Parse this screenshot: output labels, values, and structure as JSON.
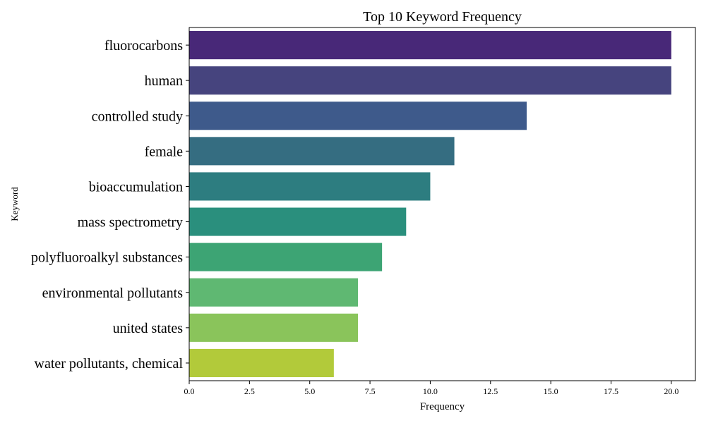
{
  "chart_data": {
    "type": "bar",
    "orientation": "horizontal",
    "title": "Top 10 Keyword Frequency",
    "xlabel": "Frequency",
    "ylabel": "Keyword",
    "xlim": [
      0,
      21
    ],
    "xticks": [
      0.0,
      2.5,
      5.0,
      7.5,
      10.0,
      12.5,
      15.0,
      17.5,
      20.0
    ],
    "xtick_labels": [
      "0.0",
      "2.5",
      "5.0",
      "7.5",
      "10.0",
      "12.5",
      "15.0",
      "17.5",
      "20.0"
    ],
    "categories": [
      "fluorocarbons",
      "human",
      "controlled study",
      "female",
      "bioaccumulation",
      "mass spectrometry",
      "polyfluoroalkyl substances",
      "environmental pollutants",
      "united states",
      "water pollutants, chemical"
    ],
    "values": [
      20,
      20,
      14,
      11,
      10,
      9,
      8,
      7,
      7,
      6
    ],
    "colors": [
      "#482878",
      "#46447e",
      "#3e5a8b",
      "#356d81",
      "#2d7d80",
      "#2a8f7d",
      "#3da474",
      "#5fb872",
      "#8ac45b",
      "#b2ca3a"
    ],
    "grid": false
  }
}
